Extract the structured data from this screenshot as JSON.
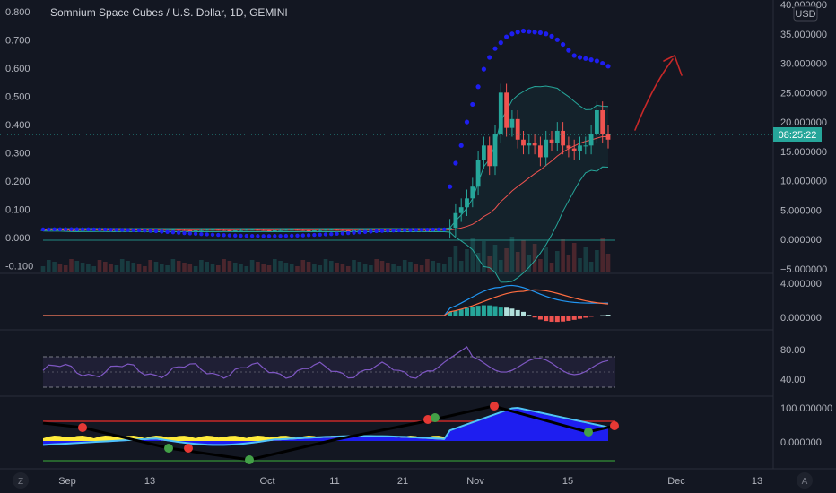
{
  "title": "Somnium Space Cubes / U.S. Dollar, 1D, GEMINI",
  "currency_button": "USD",
  "countdown": "08:25:22",
  "corner_left": "Z",
  "corner_right": "A",
  "colors": {
    "background": "#131722",
    "up": "#26a69a",
    "down": "#ef5350",
    "psar": "#1e1ef0",
    "bb": "#26a69a",
    "rsi": "#7e57c2",
    "macd": "#2196f3",
    "signal": "#ff6d40",
    "annotation": "#c62828"
  },
  "chart_data": [
    {
      "name": "price-panel",
      "type": "candlestick",
      "left_axis": {
        "ticks": [
          "0.800",
          "0.700",
          "0.600",
          "0.500",
          "0.400",
          "0.300",
          "0.200",
          "0.100",
          "0.000",
          "-0.100"
        ],
        "range": [
          -0.1,
          0.8
        ]
      },
      "right_axis": {
        "ticks": [
          "40.000000",
          "35.000000",
          "30.000000",
          "25.000000",
          "20.000000",
          "15.000000",
          "10.000000",
          "5.000000",
          "0.000000",
          "−5.000000"
        ],
        "range": [
          -5,
          40
        ]
      },
      "x_axis": {
        "ticks": [
          "Sep",
          "13",
          "Oct",
          "11",
          "21",
          "Nov",
          "15",
          "Dec",
          "13"
        ]
      },
      "flat_close": 1.6,
      "breakout_closes": [
        2,
        4.5,
        5.5,
        7,
        9,
        13.5,
        16,
        12.5,
        18,
        25,
        19,
        20.5,
        17,
        16,
        16.5,
        16,
        14,
        17,
        16.5,
        18.5,
        16,
        15.5,
        15,
        16,
        16,
        18,
        22,
        18,
        17
      ],
      "psar_breakout": [
        9,
        13,
        16,
        20,
        23,
        26,
        29,
        31,
        32.5,
        33.5,
        34.5,
        35,
        35.3,
        35.5,
        35.4,
        35.3,
        35.2,
        35,
        34.6,
        34,
        33.2,
        32.2,
        31.3,
        31,
        30.8,
        30.6,
        30.4,
        30,
        29.5
      ],
      "current_price": 16.8
    },
    {
      "name": "macd-panel",
      "type": "line",
      "axis": {
        "ticks": [
          "4.000000",
          "0.000000"
        ],
        "range": [
          -0.3,
          4.8
        ]
      }
    },
    {
      "name": "rsi-panel",
      "type": "line",
      "axis": {
        "ticks": [
          "80.00",
          "40.00"
        ],
        "range": [
          30,
          90
        ]
      },
      "bands": [
        70,
        30
      ]
    },
    {
      "name": "oscillator-panel",
      "type": "area",
      "axis": {
        "ticks": [
          "100.000000",
          "0.000000"
        ],
        "range": [
          -55,
          125
        ]
      },
      "levels": [
        60,
        -55
      ]
    }
  ]
}
